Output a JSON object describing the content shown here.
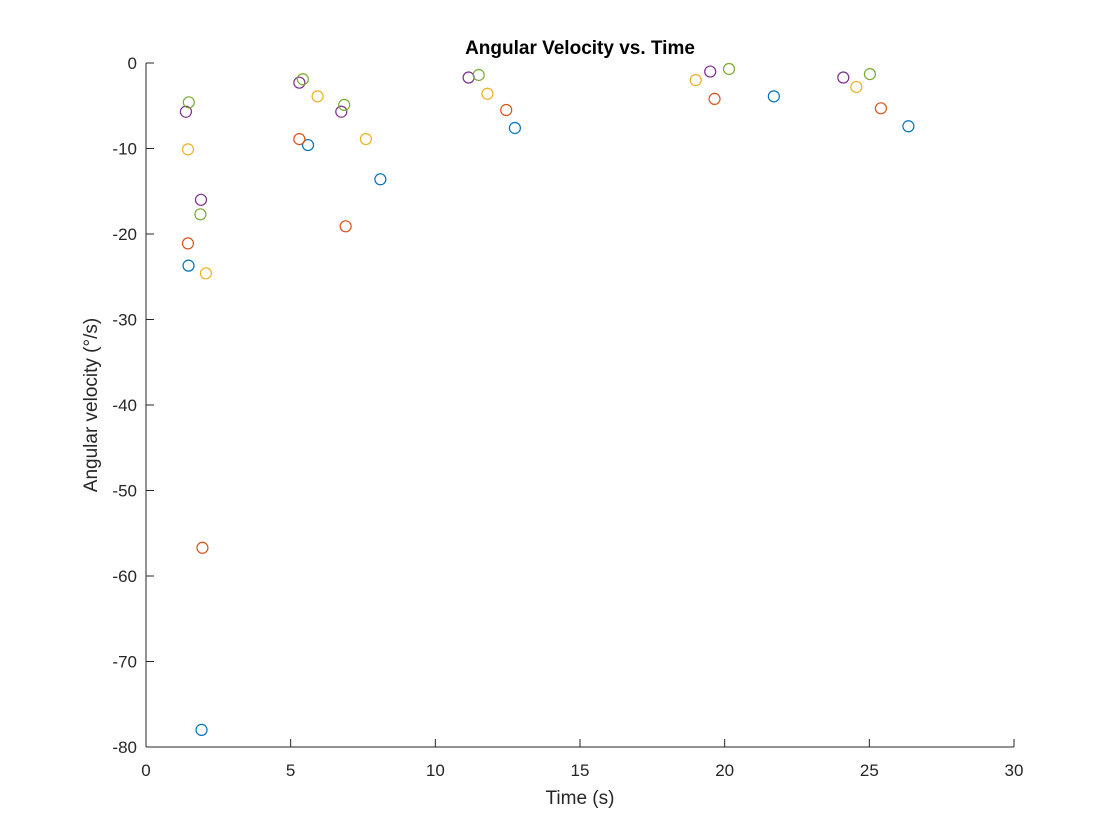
{
  "chart_data": {
    "type": "scatter",
    "title": "Angular Velocity vs. Time",
    "xlabel": "Time (s)",
    "ylabel": "Angular velocity (°/s)",
    "xlim": [
      0,
      30
    ],
    "ylim": [
      -80,
      0
    ],
    "xticks": [
      "0",
      "5",
      "10",
      "15",
      "20",
      "25",
      "30"
    ],
    "yticks": [
      "0",
      "-10",
      "-20",
      "-30",
      "-40",
      "-50",
      "-60",
      "-70",
      "-80"
    ],
    "grid": false,
    "legend": "none",
    "marker": "open-circle",
    "series": [
      {
        "color": "#0072BD",
        "points": [
          {
            "x": 1.47,
            "y": -23.7
          },
          {
            "x": 1.92,
            "y": -78.0
          },
          {
            "x": 5.6,
            "y": -9.6
          },
          {
            "x": 8.1,
            "y": -13.6
          },
          {
            "x": 12.75,
            "y": -7.6
          },
          {
            "x": 21.7,
            "y": -3.9
          },
          {
            "x": 26.35,
            "y": -7.4
          }
        ]
      },
      {
        "color": "#D95319",
        "points": [
          {
            "x": 1.45,
            "y": -21.1
          },
          {
            "x": 1.95,
            "y": -56.7
          },
          {
            "x": 5.3,
            "y": -8.9
          },
          {
            "x": 6.9,
            "y": -19.1
          },
          {
            "x": 12.45,
            "y": -5.5
          },
          {
            "x": 19.65,
            "y": -4.2
          },
          {
            "x": 25.4,
            "y": -5.3
          }
        ]
      },
      {
        "color": "#EDB120",
        "points": [
          {
            "x": 1.45,
            "y": -10.1
          },
          {
            "x": 2.07,
            "y": -24.6
          },
          {
            "x": 5.93,
            "y": -3.9
          },
          {
            "x": 7.6,
            "y": -8.9
          },
          {
            "x": 11.8,
            "y": -3.6
          },
          {
            "x": 19.0,
            "y": -2.0
          },
          {
            "x": 24.55,
            "y": -2.8
          }
        ]
      },
      {
        "color": "#7E2F8E",
        "points": [
          {
            "x": 1.38,
            "y": -5.7
          },
          {
            "x": 1.9,
            "y": -16.0
          },
          {
            "x": 5.3,
            "y": -2.3
          },
          {
            "x": 6.75,
            "y": -5.7
          },
          {
            "x": 11.15,
            "y": -1.7
          },
          {
            "x": 19.5,
            "y": -1.0
          },
          {
            "x": 24.1,
            "y": -1.7
          }
        ]
      },
      {
        "color": "#77AC30",
        "points": [
          {
            "x": 1.48,
            "y": -4.6
          },
          {
            "x": 1.88,
            "y": -17.7
          },
          {
            "x": 5.42,
            "y": -1.9
          },
          {
            "x": 6.85,
            "y": -4.9
          },
          {
            "x": 11.5,
            "y": -1.4
          },
          {
            "x": 20.15,
            "y": -0.7
          },
          {
            "x": 25.02,
            "y": -1.3
          }
        ]
      }
    ]
  }
}
